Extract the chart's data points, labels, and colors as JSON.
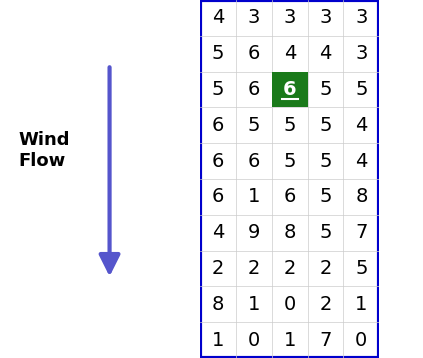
{
  "grid": [
    [
      4,
      3,
      3,
      3,
      3
    ],
    [
      5,
      6,
      4,
      4,
      3
    ],
    [
      5,
      6,
      6,
      5,
      5
    ],
    [
      6,
      5,
      5,
      5,
      4
    ],
    [
      6,
      6,
      5,
      5,
      4
    ],
    [
      6,
      1,
      6,
      5,
      8
    ],
    [
      4,
      9,
      8,
      5,
      7
    ],
    [
      2,
      2,
      2,
      2,
      5
    ],
    [
      8,
      1,
      0,
      2,
      1
    ],
    [
      1,
      0,
      1,
      7,
      0
    ]
  ],
  "highlight_cell": [
    2,
    2
  ],
  "highlight_bg": "#1a7a1a",
  "highlight_text_color": "#ffffff",
  "normal_text_color": "#000000",
  "grid_bg": "#ffffff",
  "border_color": "#0000cc",
  "arrow_color": "#5555cc",
  "wind_flow_label": "Wind\nFlow",
  "label_fontsize": 13,
  "cell_fontsize": 14,
  "highlight_fontsize": 14,
  "rows": 10,
  "cols": 5,
  "fig_width": 4.23,
  "fig_height": 3.58,
  "dpi": 100
}
